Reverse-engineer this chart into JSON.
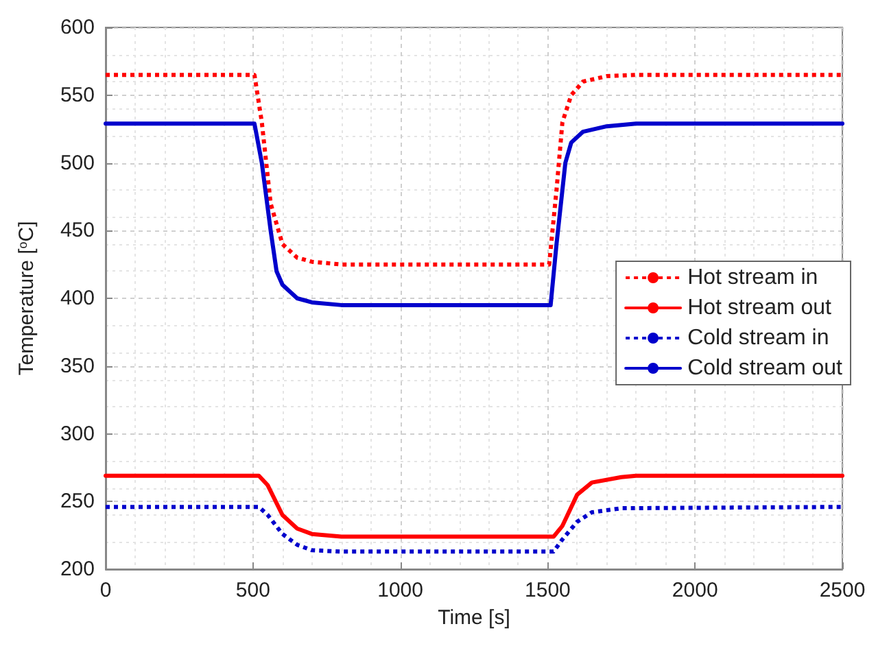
{
  "chart_data": {
    "type": "line",
    "xlabel": "Time [s]",
    "ylabel": "Temperature [$^{o}$C]",
    "xlim": [
      0,
      2500
    ],
    "xticks": [
      0,
      500,
      1000,
      1500,
      2000,
      2500
    ],
    "ylim": [
      200,
      600
    ],
    "yticks": [
      200,
      250,
      300,
      350,
      400,
      450,
      500,
      550,
      600
    ],
    "grid": true,
    "legend": "right",
    "marker": "none",
    "series": [
      {
        "name": "Hot stream in",
        "color": "#ff0000",
        "line_style": "dotted",
        "x": [
          0,
          505,
          530,
          560,
          600,
          650,
          700,
          800,
          1505,
          1530,
          1550,
          1580,
          1620,
          1700,
          1800,
          2500
        ],
        "values": [
          565,
          565,
          530,
          470,
          440,
          430,
          427,
          425,
          425,
          480,
          530,
          550,
          560,
          564,
          565,
          565
        ]
      },
      {
        "name": "Hot stream out",
        "color": "#ff0000",
        "line_style": "solid",
        "x": [
          0,
          520,
          550,
          600,
          650,
          700,
          800,
          1520,
          1550,
          1600,
          1650,
          1750,
          1800,
          2500
        ],
        "values": [
          269,
          269,
          262,
          240,
          230,
          226,
          224,
          224,
          232,
          255,
          264,
          268,
          269,
          269
        ]
      },
      {
        "name": "Cold stream in",
        "color": "#0000cc",
        "line_style": "dotted",
        "x": [
          0,
          520,
          550,
          600,
          650,
          700,
          800,
          1520,
          1550,
          1600,
          1650,
          1750,
          2500
        ],
        "values": [
          246,
          246,
          240,
          226,
          218,
          214,
          213,
          213,
          222,
          235,
          242,
          245,
          246
        ]
      },
      {
        "name": "Cold stream out",
        "color": "#0000cc",
        "line_style": "solid",
        "x": [
          0,
          505,
          530,
          560,
          580,
          600,
          650,
          700,
          800,
          1510,
          1530,
          1560,
          1580,
          1620,
          1700,
          1800,
          2500
        ],
        "values": [
          529,
          529,
          500,
          450,
          420,
          410,
          400,
          397,
          395,
          395,
          440,
          500,
          515,
          523,
          527,
          529,
          529
        ]
      }
    ]
  }
}
